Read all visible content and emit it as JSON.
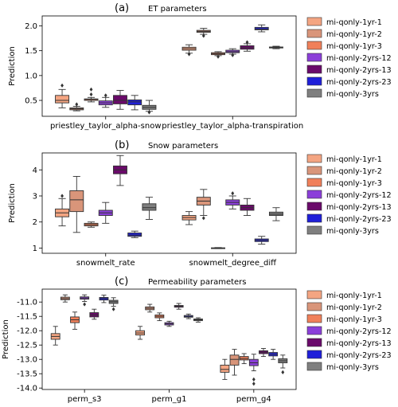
{
  "figure": {
    "legend_entries": [
      {
        "label": "mi-qonly-1yr-1",
        "color": "#f4a582"
      },
      {
        "label": "mi-qonly-1yr-2",
        "color": "#d9957a"
      },
      {
        "label": "mi-qonly-1yr-3",
        "color": "#f0805a"
      },
      {
        "label": "mi-qonly-2yrs-12",
        "color": "#8b3fd9"
      },
      {
        "label": "mi-qonly-2yrs-13",
        "color": "#6a0a6a"
      },
      {
        "label": "mi-qonly-2yrs-23",
        "color": "#1f1fd9"
      },
      {
        "label": "mi-qonly-3yrs",
        "color": "#7f7f7f"
      }
    ]
  },
  "chart_data": [
    {
      "type": "box",
      "panel_label": "(a)",
      "title": "ET parameters",
      "ylabel": "Prediction",
      "ylim": [
        0.18,
        2.2
      ],
      "yticks": [
        0.5,
        1.0,
        1.5,
        2.0
      ],
      "ytick_labels": [
        "0.5",
        "1.0",
        "1.5",
        "2.0"
      ],
      "categories": [
        "priestley_taylor_alpha-snow",
        "priestley_taylor_alpha-transpiration"
      ],
      "legend": "right",
      "series": [
        {
          "name": "mi-qonly-1yr-1",
          "boxes": [
            {
              "min": 0.35,
              "q1": 0.45,
              "median": 0.5,
              "q3": 0.6,
              "max": 0.72,
              "outliers": [
                0.8
              ]
            },
            {
              "min": 1.45,
              "q1": 1.51,
              "median": 1.54,
              "q3": 1.57,
              "max": 1.62,
              "outliers": [
                1.43
              ]
            }
          ]
        },
        {
          "name": "mi-qonly-1yr-2",
          "boxes": [
            {
              "min": 0.29,
              "q1": 0.31,
              "median": 0.33,
              "q3": 0.35,
              "max": 0.38,
              "outliers": [
                0.42
              ]
            },
            {
              "min": 1.83,
              "q1": 1.87,
              "median": 1.89,
              "q3": 1.91,
              "max": 1.95,
              "outliers": [
                1.8
              ]
            }
          ]
        },
        {
          "name": "mi-qonly-1yr-3",
          "boxes": [
            {
              "min": 0.47,
              "q1": 0.5,
              "median": 0.52,
              "q3": 0.53,
              "max": 0.56,
              "outliers": [
                0.72,
                0.62
              ]
            },
            {
              "min": 1.4,
              "q1": 1.42,
              "median": 1.44,
              "q3": 1.46,
              "max": 1.48,
              "outliers": [
                1.38
              ]
            }
          ]
        },
        {
          "name": "mi-qonly-2yrs-12",
          "boxes": [
            {
              "min": 0.36,
              "q1": 0.41,
              "median": 0.45,
              "q3": 0.49,
              "max": 0.56,
              "outliers": [
                0.6
              ]
            },
            {
              "min": 1.43,
              "q1": 1.46,
              "median": 1.48,
              "q3": 1.51,
              "max": 1.54,
              "outliers": [
                1.41
              ]
            }
          ]
        },
        {
          "name": "mi-qonly-2yrs-13",
          "boxes": [
            {
              "min": 0.32,
              "q1": 0.43,
              "median": 0.5,
              "q3": 0.6,
              "max": 0.7,
              "outliers": []
            },
            {
              "min": 1.49,
              "q1": 1.53,
              "median": 1.56,
              "q3": 1.6,
              "max": 1.64,
              "outliers": [
                1.67
              ]
            }
          ]
        },
        {
          "name": "mi-qonly-2yrs-23",
          "boxes": [
            {
              "min": 0.31,
              "q1": 0.41,
              "median": 0.47,
              "q3": 0.51,
              "max": 0.6,
              "outliers": []
            },
            {
              "min": 1.88,
              "q1": 1.92,
              "median": 1.94,
              "q3": 1.97,
              "max": 2.02,
              "outliers": []
            }
          ]
        },
        {
          "name": "mi-qonly-3yrs",
          "boxes": [
            {
              "min": 0.28,
              "q1": 0.32,
              "median": 0.36,
              "q3": 0.4,
              "max": 0.5,
              "outliers": [
                0.26
              ]
            },
            {
              "min": 1.54,
              "q1": 1.555,
              "median": 1.565,
              "q3": 1.575,
              "max": 1.59,
              "outliers": []
            }
          ]
        }
      ]
    },
    {
      "type": "box",
      "panel_label": "(b)",
      "title": "Snow parameters",
      "ylabel": "Prediction",
      "ylim": [
        0.8,
        4.65
      ],
      "yticks": [
        1,
        2,
        3,
        4
      ],
      "ytick_labels": [
        "1",
        "2",
        "3",
        "4"
      ],
      "categories": [
        "snowmelt_rate",
        "snowmelt_degree_diff"
      ],
      "legend": "right",
      "series": [
        {
          "name": "mi-qonly-1yr-1",
          "boxes": [
            {
              "min": 1.85,
              "q1": 2.2,
              "median": 2.35,
              "q3": 2.5,
              "max": 2.9,
              "outliers": [
                3.0
              ]
            },
            {
              "min": 1.9,
              "q1": 2.08,
              "median": 2.17,
              "q3": 2.25,
              "max": 2.4,
              "outliers": []
            }
          ]
        },
        {
          "name": "mi-qonly-1yr-2",
          "boxes": [
            {
              "min": 1.6,
              "q1": 2.4,
              "median": 2.85,
              "q3": 3.2,
              "max": 3.75,
              "outliers": []
            },
            {
              "min": 2.25,
              "q1": 2.65,
              "median": 2.8,
              "q3": 2.95,
              "max": 3.25,
              "outliers": [
                2.15
              ]
            }
          ]
        },
        {
          "name": "mi-qonly-1yr-3",
          "boxes": [
            {
              "min": 1.8,
              "q1": 1.85,
              "median": 1.9,
              "q3": 1.95,
              "max": 2.0,
              "outliers": []
            },
            {
              "min": 0.98,
              "q1": 0.99,
              "median": 1.0,
              "q3": 1.01,
              "max": 1.02,
              "outliers": []
            }
          ]
        },
        {
          "name": "mi-qonly-2yrs-12",
          "boxes": [
            {
              "min": 1.95,
              "q1": 2.25,
              "median": 2.35,
              "q3": 2.45,
              "max": 2.75,
              "outliers": []
            },
            {
              "min": 2.5,
              "q1": 2.65,
              "median": 2.75,
              "q3": 2.85,
              "max": 3.0,
              "outliers": [
                3.1
              ]
            }
          ]
        },
        {
          "name": "mi-qonly-2yrs-13",
          "boxes": [
            {
              "min": 3.4,
              "q1": 3.85,
              "median": 4.0,
              "q3": 4.15,
              "max": 4.55,
              "outliers": []
            },
            {
              "min": 2.25,
              "q1": 2.45,
              "median": 2.55,
              "q3": 2.65,
              "max": 2.9,
              "outliers": []
            }
          ]
        },
        {
          "name": "mi-qonly-2yrs-23",
          "boxes": [
            {
              "min": 1.4,
              "q1": 1.45,
              "median": 1.5,
              "q3": 1.58,
              "max": 1.65,
              "outliers": []
            },
            {
              "min": 1.15,
              "q1": 1.25,
              "median": 1.3,
              "q3": 1.35,
              "max": 1.45,
              "outliers": []
            }
          ]
        },
        {
          "name": "mi-qonly-3yrs",
          "boxes": [
            {
              "min": 2.1,
              "q1": 2.45,
              "median": 2.55,
              "q3": 2.7,
              "max": 2.95,
              "outliers": []
            },
            {
              "min": 2.05,
              "q1": 2.25,
              "median": 2.3,
              "q3": 2.38,
              "max": 2.55,
              "outliers": []
            }
          ]
        }
      ]
    },
    {
      "type": "box",
      "panel_label": "(c)",
      "title": "Permeability parameters",
      "ylabel": "Prediction",
      "ylim": [
        -14.05,
        -10.55
      ],
      "yticks": [
        -14.0,
        -13.5,
        -13.0,
        -12.5,
        -12.0,
        -11.5,
        -11.0
      ],
      "ytick_labels": [
        "-14.0",
        "-13.5",
        "-13.0",
        "-12.5",
        "-12.0",
        "-11.5",
        "-11.0"
      ],
      "categories": [
        "perm_s3",
        "perm_g1",
        "perm_g4"
      ],
      "legend": "right",
      "series": [
        {
          "name": "mi-qonly-1yr-1",
          "boxes": [
            {
              "min": -12.5,
              "q1": -12.3,
              "median": -12.2,
              "q3": -12.1,
              "max": -11.85,
              "outliers": []
            },
            {
              "min": -12.3,
              "q1": -12.15,
              "median": -12.08,
              "q3": -12.0,
              "max": -11.85,
              "outliers": []
            },
            {
              "min": -13.7,
              "q1": -13.45,
              "median": -13.35,
              "q3": -13.2,
              "max": -13.0,
              "outliers": []
            }
          ]
        },
        {
          "name": "mi-qonly-1yr-2",
          "boxes": [
            {
              "min": -11.0,
              "q1": -10.92,
              "median": -10.88,
              "q3": -10.83,
              "max": -10.75,
              "outliers": []
            },
            {
              "min": -11.35,
              "q1": -11.27,
              "median": -11.22,
              "q3": -11.17,
              "max": -11.08,
              "outliers": []
            },
            {
              "min": -13.55,
              "q1": -13.2,
              "median": -13.0,
              "q3": -12.85,
              "max": -12.65,
              "outliers": []
            }
          ]
        },
        {
          "name": "mi-qonly-1yr-3",
          "boxes": [
            {
              "min": -11.95,
              "q1": -11.72,
              "median": -11.62,
              "q3": -11.52,
              "max": -11.35,
              "outliers": []
            },
            {
              "min": -11.65,
              "q1": -11.55,
              "median": -11.5,
              "q3": -11.45,
              "max": -11.38,
              "outliers": []
            },
            {
              "min": -13.15,
              "q1": -13.02,
              "median": -12.97,
              "q3": -12.9,
              "max": -12.8,
              "outliers": []
            }
          ]
        },
        {
          "name": "mi-qonly-2yrs-12",
          "boxes": [
            {
              "min": -10.98,
              "q1": -10.9,
              "median": -10.86,
              "q3": -10.82,
              "max": -10.75,
              "outliers": [
                -11.08
              ]
            },
            {
              "min": -11.85,
              "q1": -11.8,
              "median": -11.76,
              "q3": -11.72,
              "max": -11.67,
              "outliers": []
            },
            {
              "min": -13.4,
              "q1": -13.22,
              "median": -13.12,
              "q3": -13.0,
              "max": -12.82,
              "outliers": [
                -13.7,
                -13.85
              ]
            }
          ]
        },
        {
          "name": "mi-qonly-2yrs-13",
          "boxes": [
            {
              "min": -11.6,
              "q1": -11.52,
              "median": -11.45,
              "q3": -11.37,
              "max": -11.25,
              "outliers": []
            },
            {
              "min": -11.25,
              "q1": -11.18,
              "median": -11.15,
              "q3": -11.12,
              "max": -11.05,
              "outliers": []
            },
            {
              "min": -12.9,
              "q1": -12.8,
              "median": -12.75,
              "q3": -12.7,
              "max": -12.62,
              "outliers": []
            }
          ]
        },
        {
          "name": "mi-qonly-2yrs-23",
          "boxes": [
            {
              "min": -11.02,
              "q1": -10.93,
              "median": -10.88,
              "q3": -10.84,
              "max": -10.76,
              "outliers": []
            },
            {
              "min": -11.58,
              "q1": -11.53,
              "median": -11.5,
              "q3": -11.47,
              "max": -11.42,
              "outliers": []
            },
            {
              "min": -13.0,
              "q1": -12.88,
              "median": -12.82,
              "q3": -12.76,
              "max": -12.65,
              "outliers": []
            }
          ]
        },
        {
          "name": "mi-qonly-3yrs",
          "boxes": [
            {
              "min": -11.15,
              "q1": -11.05,
              "median": -10.99,
              "q3": -10.94,
              "max": -10.85,
              "outliers": [
                -11.25
              ]
            },
            {
              "min": -11.7,
              "q1": -11.65,
              "median": -11.62,
              "q3": -11.59,
              "max": -11.55,
              "outliers": []
            },
            {
              "min": -13.3,
              "q1": -13.12,
              "median": -13.05,
              "q3": -12.98,
              "max": -12.85,
              "outliers": [
                -13.45
              ]
            }
          ]
        }
      ]
    }
  ]
}
